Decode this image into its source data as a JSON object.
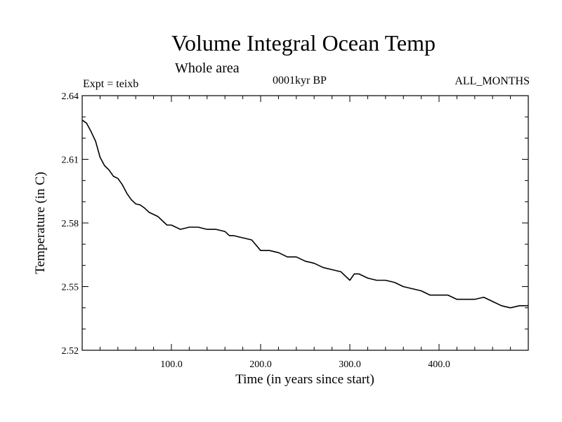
{
  "chart_data": {
    "type": "line",
    "title": "Volume Integral Ocean Temp",
    "subtitle": "Whole area",
    "annotations": {
      "left": "Expt = teixb",
      "center": "0001kyr BP",
      "right": "ALL_MONTHS"
    },
    "xlabel": "Time (in years since start)",
    "ylabel": "Temperature (in C)",
    "xlim": [
      0,
      500
    ],
    "ylim": [
      2.52,
      2.64
    ],
    "x_ticks": [
      100,
      200,
      300,
      400
    ],
    "x_tick_labels": [
      "100.0",
      "200.0",
      "300.0",
      "400.0"
    ],
    "y_ticks": [
      2.52,
      2.55,
      2.58,
      2.61,
      2.64
    ],
    "y_tick_labels": [
      "2.52",
      "2.55",
      "2.58",
      "2.61",
      "2.64"
    ],
    "grid": false,
    "series": [
      {
        "color": "#000000",
        "x": [
          0,
          5,
          10,
          15,
          20,
          25,
          30,
          35,
          40,
          45,
          50,
          55,
          60,
          65,
          70,
          75,
          80,
          85,
          90,
          95,
          100,
          110,
          120,
          130,
          140,
          150,
          160,
          165,
          170,
          180,
          190,
          200,
          210,
          220,
          230,
          240,
          250,
          260,
          270,
          280,
          290,
          300,
          305,
          310,
          320,
          330,
          340,
          350,
          360,
          370,
          380,
          390,
          400,
          410,
          420,
          430,
          440,
          450,
          460,
          470,
          480,
          490,
          500
        ],
        "y": [
          2.6285,
          2.627,
          2.623,
          2.6185,
          2.611,
          2.607,
          2.605,
          2.602,
          2.601,
          2.598,
          2.594,
          2.591,
          2.589,
          2.5885,
          2.587,
          2.585,
          2.584,
          2.583,
          2.581,
          2.579,
          2.579,
          2.577,
          2.578,
          2.578,
          2.577,
          2.577,
          2.576,
          2.574,
          2.574,
          2.573,
          2.572,
          2.567,
          2.567,
          2.566,
          2.564,
          2.564,
          2.562,
          2.561,
          2.559,
          2.558,
          2.557,
          2.553,
          2.556,
          2.556,
          2.554,
          2.553,
          2.553,
          2.552,
          2.55,
          2.549,
          2.548,
          2.546,
          2.546,
          2.546,
          2.544,
          2.544,
          2.544,
          2.545,
          2.543,
          2.541,
          2.54,
          2.541,
          2.541
        ]
      }
    ]
  }
}
